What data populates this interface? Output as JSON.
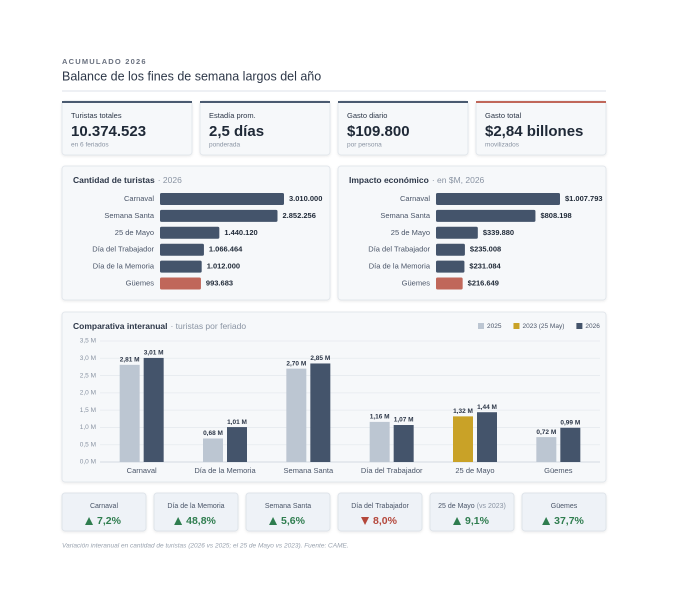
{
  "header": {
    "kicker": "ACUMULADO 2026",
    "title": "Balance de los fines de semana largos del año"
  },
  "kpis": [
    {
      "label": "Turistas totales",
      "value": "10.374.523",
      "note": "en 6 feriados",
      "color": "#4a5a70"
    },
    {
      "label": "Estadía prom.",
      "value": "2,5 días",
      "note": "ponderada",
      "color": "#4a5a70"
    },
    {
      "label": "Gasto diario",
      "value": "$109.800",
      "note": "por persona",
      "color": "#4a5a70"
    },
    {
      "label": "Gasto total",
      "value": "$2,84 billones",
      "note": "movilizados",
      "color": "#c0675a"
    }
  ],
  "chart_data": [
    {
      "type": "hbar",
      "title": "Cantidad de turistas",
      "subtitle": "· 2026",
      "categories": [
        "Carnaval",
        "Semana Santa",
        "25 de Mayo",
        "Día del Trabajador",
        "Día de la Memoria",
        "Güemes"
      ],
      "values": [
        3010000,
        2852256,
        1440120,
        1066464,
        1012000,
        993683
      ],
      "value_labels": [
        "3.010.000",
        "2.852.256",
        "1.440.120",
        "1.066.464",
        "1.012.000",
        "993.683"
      ],
      "colors": [
        "#44546b",
        "#44546b",
        "#44546b",
        "#44546b",
        "#44546b",
        "#c0675a"
      ]
    },
    {
      "type": "hbar",
      "title": "Impacto económico",
      "subtitle": "· en $M, 2026",
      "categories": [
        "Carnaval",
        "Semana Santa",
        "25 de Mayo",
        "Día del Trabajador",
        "Día de la Memoria",
        "Güemes"
      ],
      "values": [
        1007793,
        808198,
        339880,
        235008,
        231084,
        216649
      ],
      "value_labels": [
        "$1.007.793",
        "$808.198",
        "$339.880",
        "$235.008",
        "$231.084",
        "$216.649"
      ],
      "colors": [
        "#44546b",
        "#44546b",
        "#44546b",
        "#44546b",
        "#44546b",
        "#c0675a"
      ]
    },
    {
      "type": "bar",
      "title": "Comparativa interanual",
      "subtitle": "· turistas por feriado",
      "categories": [
        "Carnaval",
        "Día de la Memoria",
        "Semana Santa",
        "Día del Trabajador",
        "25 de Mayo",
        "Güemes"
      ],
      "series": [
        {
          "name": "2025",
          "color": "#bcc6d2",
          "values": [
            2.81,
            0.68,
            2.7,
            1.16,
            null,
            0.72
          ],
          "value_labels": [
            "2,81 M",
            "0,68 M",
            "2,70 M",
            "1,16 M",
            null,
            "0,72 M"
          ]
        },
        {
          "name": "2023 (25 May)",
          "color": "#c9a227",
          "values": [
            null,
            null,
            null,
            null,
            1.32,
            null
          ],
          "value_labels": [
            null,
            null,
            null,
            null,
            "1,32 M",
            null
          ]
        },
        {
          "name": "2026",
          "color": "#44546b",
          "values": [
            3.01,
            1.01,
            2.85,
            1.07,
            1.44,
            0.99
          ],
          "value_labels": [
            "3,01 M",
            "1,01 M",
            "2,85 M",
            "1,07 M",
            "1,44 M",
            "0,99 M"
          ]
        }
      ],
      "ylim": [
        0,
        3.5
      ],
      "yticks": [
        {
          "value": 0,
          "label": "0,0 M"
        },
        {
          "value": 0.5,
          "label": "0,5 M"
        },
        {
          "value": 1,
          "label": "1,0 M"
        },
        {
          "value": 1.5,
          "label": "1,5 M"
        },
        {
          "value": 2,
          "label": "2,0 M"
        },
        {
          "value": 2.5,
          "label": "2,5 M"
        },
        {
          "value": 3,
          "label": "3,0 M"
        },
        {
          "value": 3.5,
          "label": "3,5 M"
        }
      ],
      "grid": true,
      "legend": "top-right"
    }
  ],
  "changes": [
    {
      "label": "Carnaval",
      "value": 7.2,
      "value_label": "7,2%"
    },
    {
      "label": "Día de la Memoria",
      "value": 48.8,
      "value_label": "48,8%"
    },
    {
      "label": "Semana Santa",
      "value": 5.6,
      "value_label": "5,6%"
    },
    {
      "label": "Día del Trabajador",
      "value": -8.0,
      "value_label": "8,0%"
    },
    {
      "label": "25 de Mayo",
      "qualifier": "(vs 2023)",
      "value": 9.1,
      "value_label": "9,1%"
    },
    {
      "label": "Güemes",
      "value": 37.7,
      "value_label": "37,7%"
    }
  ],
  "footnote": "Variación interanual en cantidad de turistas (2026 vs 2025; el 25 de Mayo vs 2023). Fuente: CAME."
}
